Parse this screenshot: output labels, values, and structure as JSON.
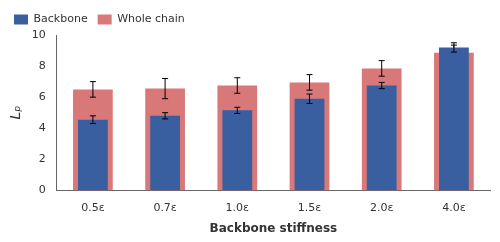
{
  "chart_data": {
    "type": "bar",
    "categories": [
      "0.5ε",
      "0.7ε",
      "1.0ε",
      "1.5ε",
      "2.0ε",
      "4.0ε"
    ],
    "series": [
      {
        "name": "Backbone",
        "color": "#3a5fa0",
        "values": [
          4.55,
          4.8,
          5.15,
          5.9,
          6.75,
          9.2
        ],
        "errors": [
          0.25,
          0.2,
          0.2,
          0.3,
          0.2,
          0.3
        ]
      },
      {
        "name": "Whole chain",
        "color": "#d87878",
        "values": [
          6.5,
          6.55,
          6.75,
          6.95,
          7.85,
          8.85
        ],
        "errors": [
          0.5,
          0.65,
          0.5,
          0.5,
          0.5,
          0.5
        ]
      }
    ],
    "xlabel": "Backbone stiffness",
    "ylabel": "Lₚ",
    "ylim": [
      0,
      10
    ],
    "yticks": [
      0,
      2,
      4,
      6,
      8,
      10
    ],
    "grid": false,
    "legend": "upper left"
  }
}
